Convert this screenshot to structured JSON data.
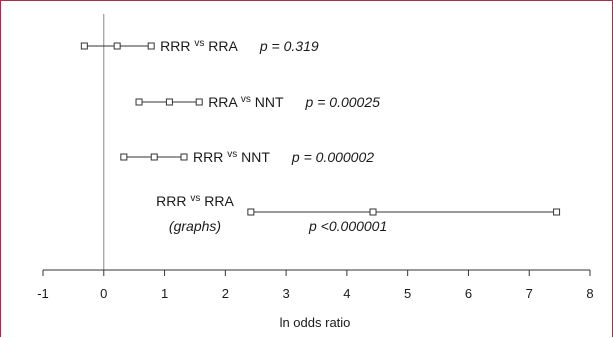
{
  "chart_data": {
    "type": "scatter",
    "xlabel": "ln odds ratio",
    "xlim": [
      -1,
      8
    ],
    "xticks": [
      "-1",
      "0",
      "1",
      "2",
      "3",
      "4",
      "5",
      "6",
      "7",
      "8"
    ],
    "rows": [
      {
        "left": "RRR",
        "vs": "vs",
        "right": "RRA",
        "sub": "",
        "low": -0.32,
        "est": 0.22,
        "high": 0.78,
        "p": "p = 0.319"
      },
      {
        "left": "RRA",
        "vs": "vs",
        "right": "NNT",
        "sub": "",
        "low": 0.58,
        "est": 1.08,
        "high": 1.57,
        "p": "p = 0.00025"
      },
      {
        "left": "RRR",
        "vs": "vs",
        "right": "NNT",
        "sub": "",
        "low": 0.33,
        "est": 0.83,
        "high": 1.32,
        "p": "p = 0.000002"
      },
      {
        "left": "RRR",
        "vs": "vs",
        "right": "RRA",
        "sub": "(graphs)",
        "low": 2.42,
        "est": 4.43,
        "high": 7.45,
        "p": "p <0.000001"
      }
    ]
  },
  "colors": {
    "border": "#a8304a",
    "axis": "#888888",
    "marker": "#333333"
  }
}
